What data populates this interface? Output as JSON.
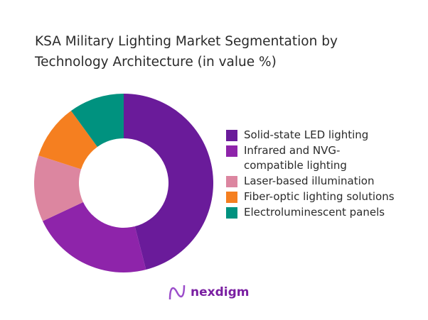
{
  "chart_data": {
    "type": "pie",
    "donut": true,
    "title": "KSA Military Lighting Market Segmentation by Technology Architecture (in value %)",
    "categories": [
      "Solid-state LED lighting",
      "Infrared and NVG-compatible lighting",
      "Laser-based illumination",
      "Fiber-optic lighting solutions",
      "Electroluminescent panels"
    ],
    "values": [
      46,
      22,
      12,
      10,
      10
    ],
    "colors": [
      "#6a1b9a",
      "#8e24aa",
      "#dc86a0",
      "#f57f20",
      "#00927f"
    ],
    "legend_position": "right"
  },
  "logo": {
    "text": "nexdigm"
  }
}
